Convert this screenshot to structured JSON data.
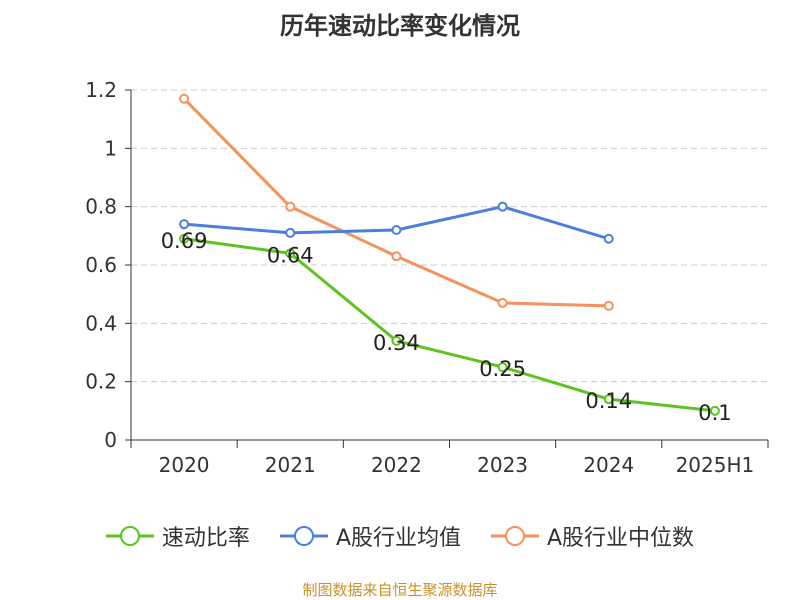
{
  "title": "历年速动比率变化情况",
  "source": "制图数据来自恒生聚源数据库",
  "chart_data": {
    "type": "line",
    "title": "历年速动比率变化情况",
    "categories": [
      "2020",
      "2021",
      "2022",
      "2023",
      "2024",
      "2025H1"
    ],
    "ylim": [
      0,
      1.2
    ],
    "yticks": [
      "0",
      "0.2",
      "0.4",
      "0.6",
      "0.8",
      "1",
      "1.2"
    ],
    "grid": true,
    "legend_position": "bottom",
    "series": [
      {
        "name": "速动比率",
        "color": "#5cc41e",
        "values": [
          0.69,
          0.64,
          0.34,
          0.25,
          0.14,
          0.1
        ],
        "labels": [
          "0.69",
          "0.64",
          "0.34",
          "0.25",
          "0.14",
          "0.1"
        ]
      },
      {
        "name": "A股行业均值",
        "color": "#4c7fdb",
        "values": [
          0.74,
          0.71,
          0.72,
          0.8,
          0.69,
          null
        ],
        "labels": null
      },
      {
        "name": "A股行业中位数",
        "color": "#f5925a",
        "values": [
          1.17,
          0.8,
          0.63,
          0.47,
          0.46,
          null
        ],
        "labels": null
      }
    ]
  }
}
